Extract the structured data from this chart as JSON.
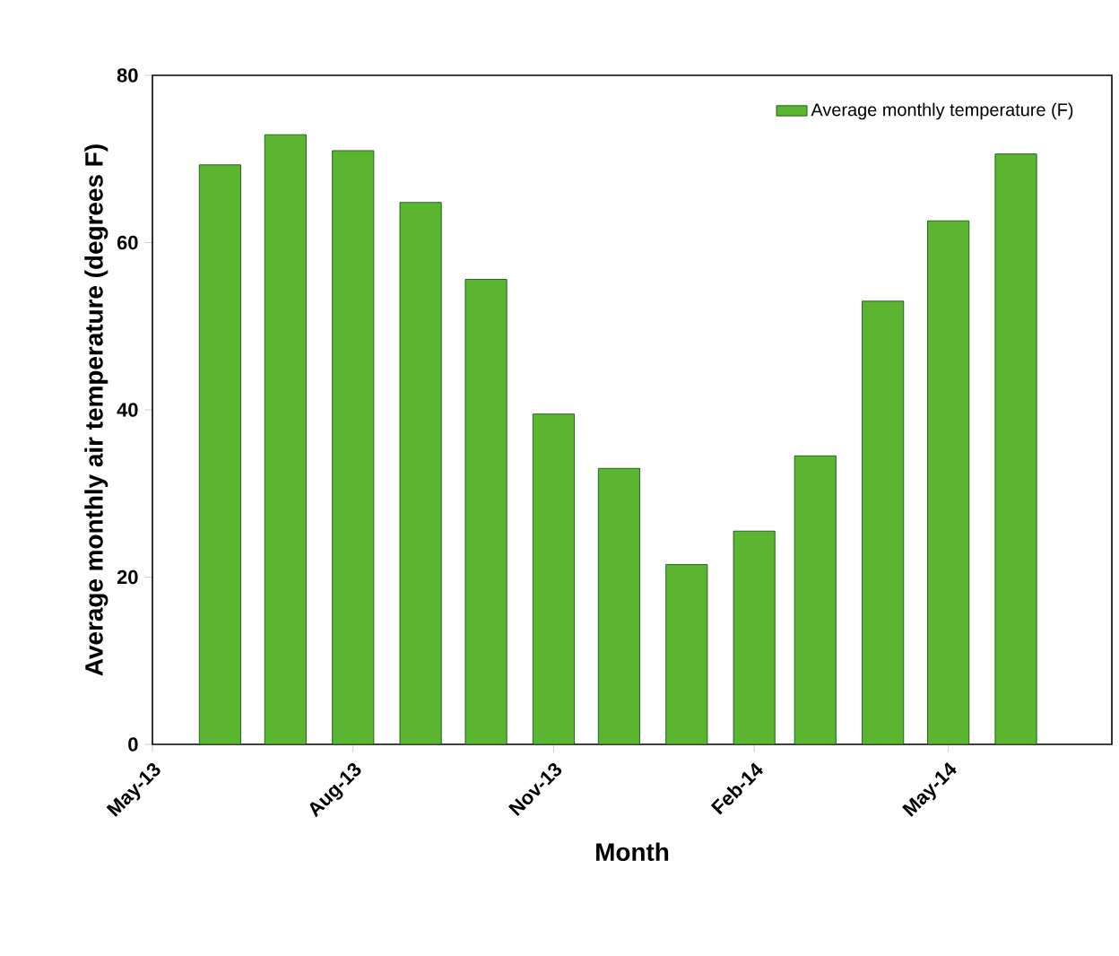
{
  "chart_data": {
    "type": "bar",
    "xlabel": "Month",
    "ylabel": "Average monthly air temperature (degrees F)",
    "x": [
      "2013-06-01",
      "2013-07-01",
      "2013-08-01",
      "2013-09-01",
      "2013-10-01",
      "2013-11-01",
      "2013-12-01",
      "2014-01-01",
      "2014-02-01",
      "2014-03-01",
      "2014-04-01",
      "2014-05-01",
      "2014-06-01"
    ],
    "series": [
      {
        "name": "Average monthly temperature (F)",
        "color": "#5cb531",
        "values": [
          69.3,
          72.9,
          71.0,
          64.8,
          55.6,
          39.5,
          33.0,
          21.5,
          25.5,
          34.5,
          53.0,
          62.6,
          70.6
        ]
      }
    ],
    "xlim": [
      "2013-05-01",
      "2014-07-15"
    ],
    "xticks": [
      {
        "value": "2013-05-01",
        "label": "May-13"
      },
      {
        "value": "2013-08-01",
        "label": "Aug-13"
      },
      {
        "value": "2013-11-01",
        "label": "Nov-13"
      },
      {
        "value": "2014-02-01",
        "label": "Feb-14"
      },
      {
        "value": "2014-05-01",
        "label": "May-14"
      }
    ],
    "ylim": [
      0,
      80
    ],
    "yticks": [
      0,
      20,
      40,
      60,
      80
    ],
    "legend": "top right"
  }
}
